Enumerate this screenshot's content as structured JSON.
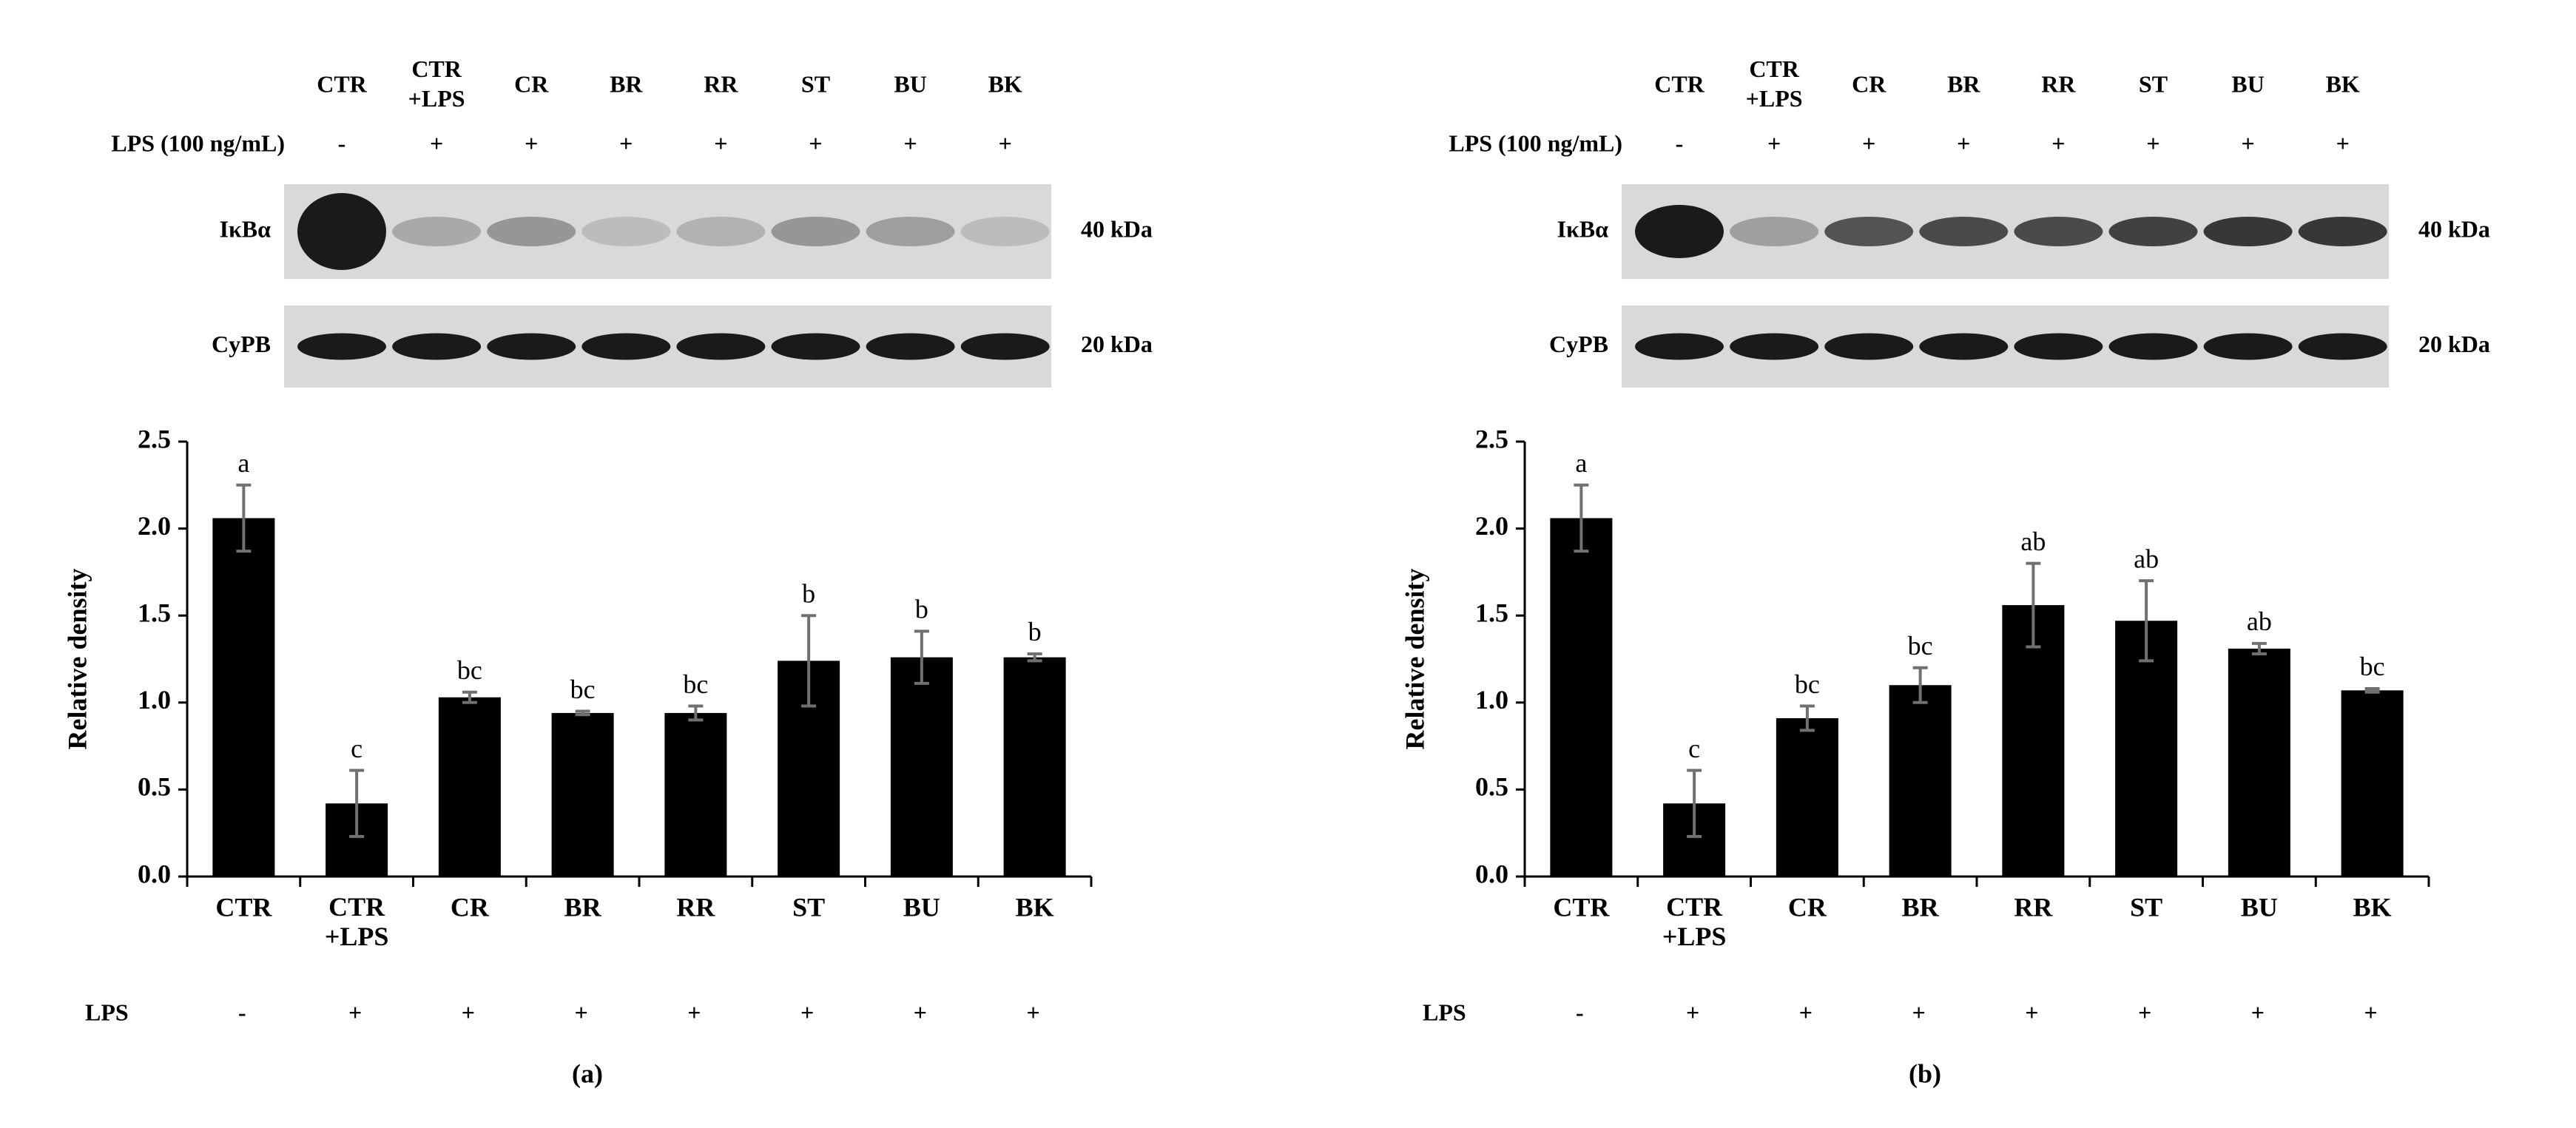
{
  "chart_data": [
    {
      "type": "bar",
      "ylabel": "Relative density",
      "panel_label": "(a)",
      "categories": [
        "CTR",
        "CTR\n+LPS",
        "CR",
        "BR",
        "RR",
        "ST",
        "BU",
        "BK"
      ],
      "values": [
        2.06,
        0.42,
        1.03,
        0.94,
        0.94,
        1.24,
        1.26,
        1.26
      ],
      "errors": [
        0.19,
        0.19,
        0.03,
        0.01,
        0.04,
        0.26,
        0.15,
        0.02
      ],
      "letters": [
        "a",
        "c",
        "bc",
        "bc",
        "bc",
        "b",
        "b",
        "b"
      ],
      "color": "#000000",
      "error_color": "#707070",
      "ylim": [
        0,
        2.5
      ],
      "yticks": [
        {
          "value": 0,
          "label": "0.0"
        },
        0.5,
        {
          "value": 1,
          "label": "1.0"
        },
        1.5,
        {
          "value": 2,
          "label": "2.0"
        },
        2.5
      ],
      "lps_label": "LPS",
      "lps_signs": [
        "-",
        "+",
        "+",
        "+",
        "+",
        "+",
        "+",
        "+"
      ],
      "blot": {
        "lanes": [
          "CTR",
          "CTR\n+LPS",
          "CR",
          "BR",
          "RR",
          "ST",
          "BU",
          "BK"
        ],
        "lps_label": "LPS (100 ng/mL)",
        "lps_signs": [
          "-",
          "+",
          "+",
          "+",
          "+",
          "+",
          "+",
          "+"
        ],
        "rows": [
          {
            "label": "IκBα",
            "size": "40 kDa"
          },
          {
            "label": "CyPB",
            "size": "20 kDa"
          }
        ]
      }
    },
    {
      "type": "bar",
      "ylabel": "Relative density",
      "panel_label": "(b)",
      "categories": [
        "CTR",
        "CTR\n+LPS",
        "CR",
        "BR",
        "RR",
        "ST",
        "BU",
        "BK"
      ],
      "values": [
        2.06,
        0.42,
        0.91,
        1.1,
        1.56,
        1.47,
        1.31,
        1.07
      ],
      "errors": [
        0.19,
        0.19,
        0.07,
        0.1,
        0.24,
        0.23,
        0.03,
        0.01
      ],
      "letters": [
        "a",
        "c",
        "bc",
        "bc",
        "ab",
        "ab",
        "ab",
        "bc"
      ],
      "color": "#000000",
      "error_color": "#707070",
      "ylim": [
        0,
        2.5
      ],
      "yticks": [
        {
          "value": 0,
          "label": "0.0"
        },
        0.5,
        {
          "value": 1,
          "label": "1.0"
        },
        1.5,
        {
          "value": 2,
          "label": "2.0"
        },
        2.5
      ],
      "lps_label": "LPS",
      "lps_signs": [
        "-",
        "+",
        "+",
        "+",
        "+",
        "+",
        "+",
        "+"
      ],
      "blot": {
        "lanes": [
          "CTR",
          "CTR\n+LPS",
          "CR",
          "BR",
          "RR",
          "ST",
          "BU",
          "BK"
        ],
        "lps_label": "LPS (100 ng/mL)",
        "lps_signs": [
          "-",
          "+",
          "+",
          "+",
          "+",
          "+",
          "+",
          "+"
        ],
        "rows": [
          {
            "label": "IκBα",
            "size": "40 kDa"
          },
          {
            "label": "CyPB",
            "size": "20 kDa"
          }
        ]
      }
    }
  ]
}
